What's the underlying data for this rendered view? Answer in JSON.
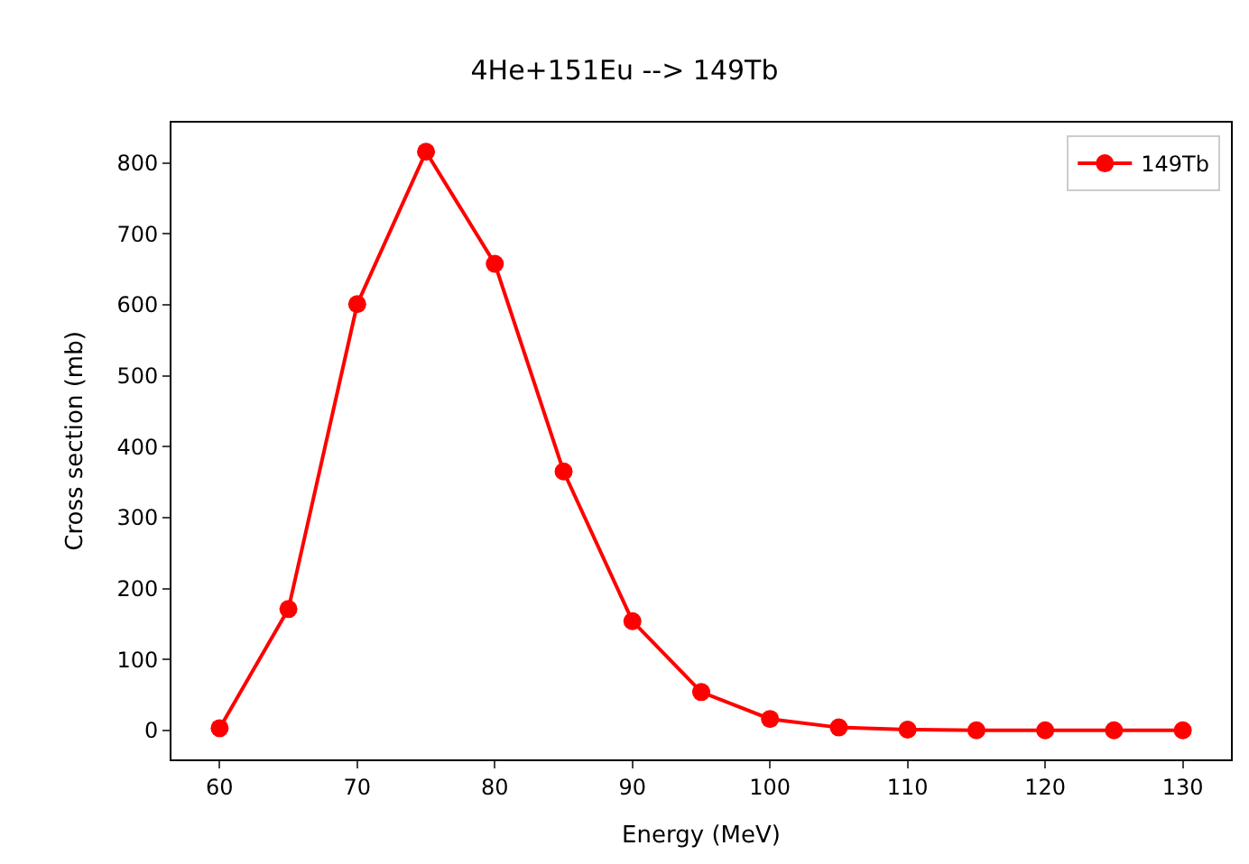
{
  "chart_data": {
    "type": "line",
    "title": "4He+151Eu --> 149Tb",
    "xlabel": "Energy (MeV)",
    "ylabel": "Cross section (mb)",
    "x": [
      60,
      65,
      70,
      75,
      80,
      85,
      90,
      95,
      100,
      105,
      110,
      115,
      120,
      125,
      130
    ],
    "series": [
      {
        "name": "149Tb",
        "color": "#ff0000",
        "values": [
          3,
          171,
          601,
          816,
          658,
          365,
          154,
          54,
          16,
          4,
          1,
          0,
          0,
          0,
          0
        ]
      }
    ],
    "xlim": [
      56.5,
      133.5
    ],
    "xticks": [
      60,
      70,
      80,
      90,
      100,
      110,
      120,
      130
    ],
    "ylim": [
      -41,
      857
    ],
    "yticks": [
      0,
      100,
      200,
      300,
      400,
      500,
      600,
      700,
      800
    ],
    "marker": "circle",
    "line_style": "solid",
    "legend": "top right"
  }
}
